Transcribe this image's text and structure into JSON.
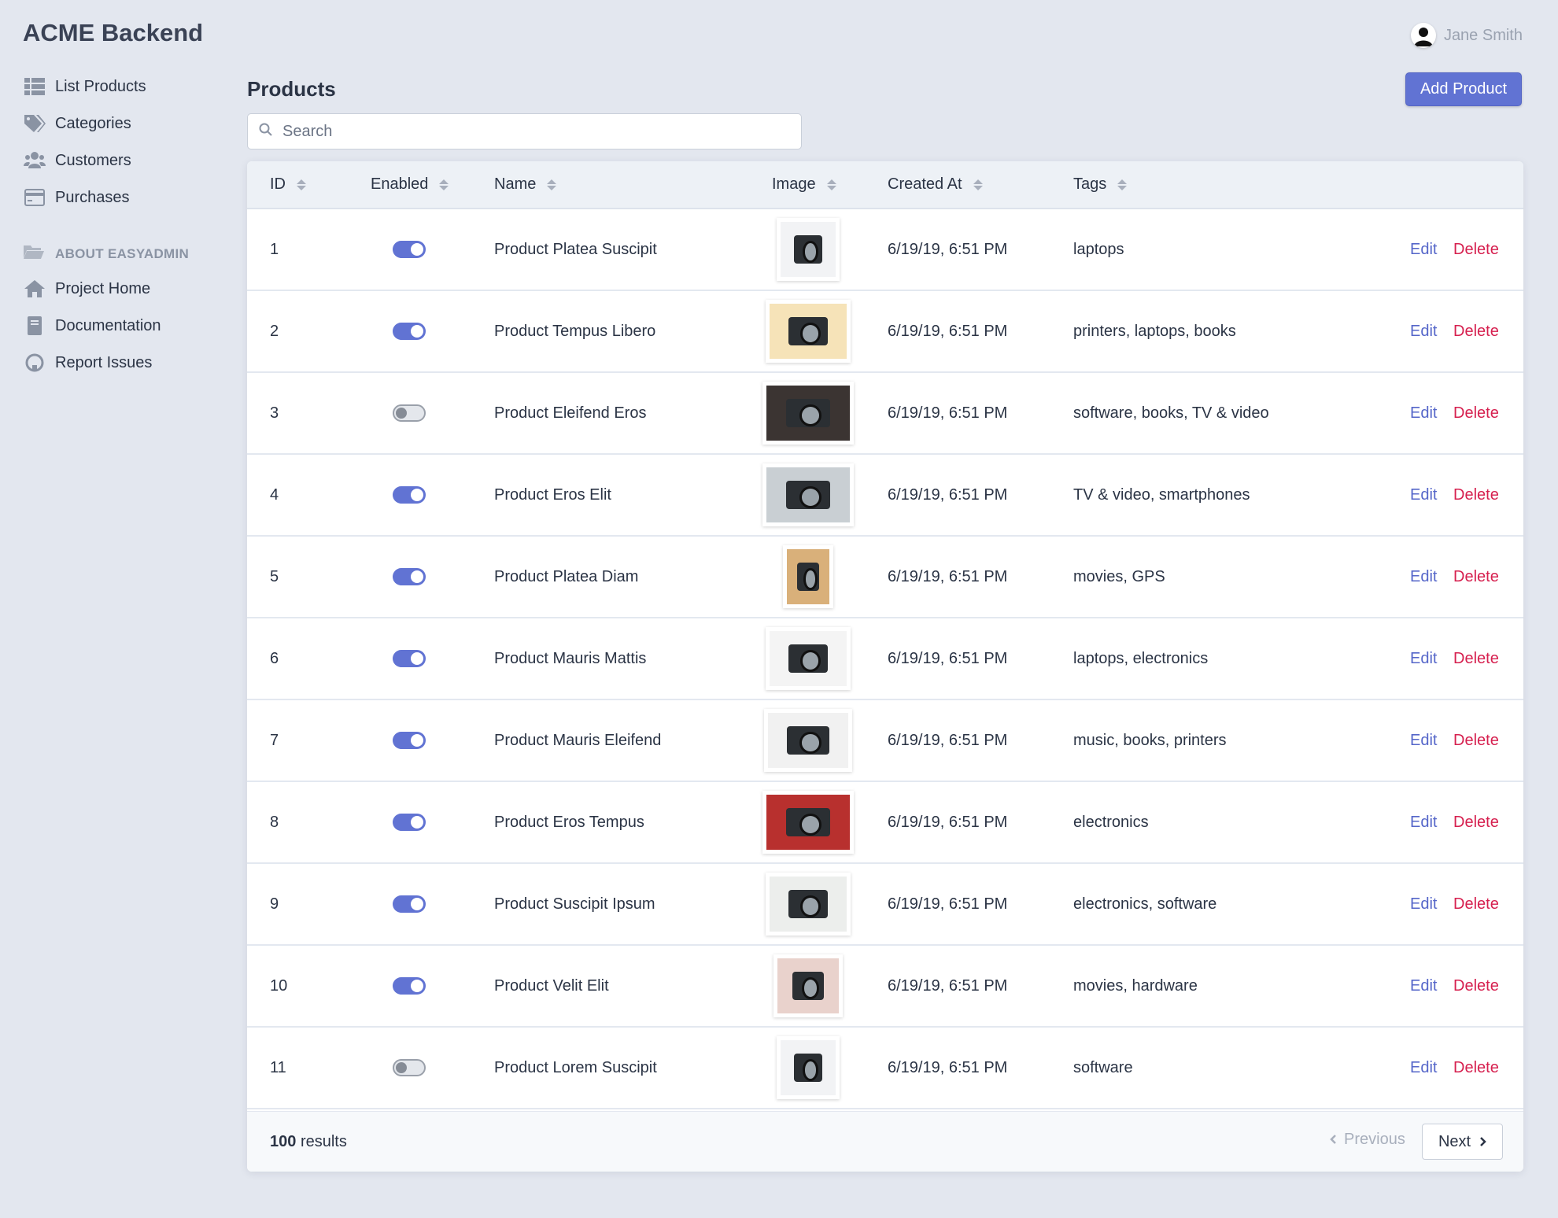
{
  "brand": "ACME Backend",
  "user": {
    "name": "Jane Smith"
  },
  "sidebar": {
    "items": [
      {
        "label": "List Products",
        "icon": "list-icon"
      },
      {
        "label": "Categories",
        "icon": "tags-icon"
      },
      {
        "label": "Customers",
        "icon": "users-icon"
      },
      {
        "label": "Purchases",
        "icon": "credit-card-icon"
      }
    ],
    "section": {
      "label": "ABOUT EASYADMIN",
      "icon": "folder-open-icon"
    },
    "about_items": [
      {
        "label": "Project Home",
        "icon": "home-icon"
      },
      {
        "label": "Documentation",
        "icon": "book-icon"
      },
      {
        "label": "Report Issues",
        "icon": "github-icon"
      }
    ]
  },
  "page": {
    "title": "Products",
    "add_label": "Add Product",
    "search_placeholder": "Search"
  },
  "table": {
    "columns": [
      "ID",
      "Enabled",
      "Name",
      "Image",
      "Created At",
      "Tags"
    ],
    "edit_label": "Edit",
    "delete_label": "Delete",
    "rows": [
      {
        "id": "1",
        "enabled": true,
        "name": "Product Platea Suscipit",
        "created": "6/19/19, 6:51 PM",
        "tags": "laptops",
        "img_bg": "#f2f3f5"
      },
      {
        "id": "2",
        "enabled": true,
        "name": "Product Tempus Libero",
        "created": "6/19/19, 6:51 PM",
        "tags": "printers, laptops, books",
        "img_bg": "#f6e3b8"
      },
      {
        "id": "3",
        "enabled": false,
        "name": "Product Eleifend Eros",
        "created": "6/19/19, 6:51 PM",
        "tags": "software, books, TV & video",
        "img_bg": "#3b3432"
      },
      {
        "id": "4",
        "enabled": true,
        "name": "Product Eros Elit",
        "created": "6/19/19, 6:51 PM",
        "tags": "TV & video, smartphones",
        "img_bg": "#c9cfd3"
      },
      {
        "id": "5",
        "enabled": true,
        "name": "Product Platea Diam",
        "created": "6/19/19, 6:51 PM",
        "tags": "movies, GPS",
        "img_bg": "#d9b07a"
      },
      {
        "id": "6",
        "enabled": true,
        "name": "Product Mauris Mattis",
        "created": "6/19/19, 6:51 PM",
        "tags": "laptops, electronics",
        "img_bg": "#f4f4f4"
      },
      {
        "id": "7",
        "enabled": true,
        "name": "Product Mauris Eleifend",
        "created": "6/19/19, 6:51 PM",
        "tags": "music, books, printers",
        "img_bg": "#f1f1f1"
      },
      {
        "id": "8",
        "enabled": true,
        "name": "Product Eros Tempus",
        "created": "6/19/19, 6:51 PM",
        "tags": "electronics",
        "img_bg": "#b8302e"
      },
      {
        "id": "9",
        "enabled": true,
        "name": "Product Suscipit Ipsum",
        "created": "6/19/19, 6:51 PM",
        "tags": "electronics, software",
        "img_bg": "#eceeec"
      },
      {
        "id": "10",
        "enabled": true,
        "name": "Product Velit Elit",
        "created": "6/19/19, 6:51 PM",
        "tags": "movies, hardware",
        "img_bg": "#e9d2cc"
      },
      {
        "id": "11",
        "enabled": false,
        "name": "Product Lorem Suscipit",
        "created": "6/19/19, 6:51 PM",
        "tags": "software",
        "img_bg": "#f2f3f5"
      }
    ]
  },
  "footer": {
    "results_count": "100",
    "results_label": "results",
    "previous_label": "Previous",
    "next_label": "Next"
  }
}
